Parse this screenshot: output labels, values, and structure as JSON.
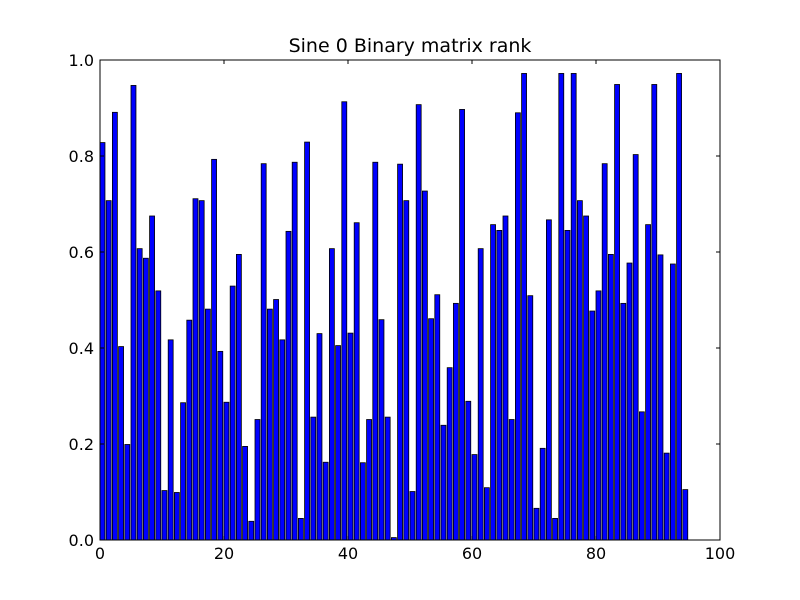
{
  "chart_data": {
    "type": "bar",
    "title": "Sine 0 Binary matrix rank",
    "xlabel": "",
    "ylabel": "",
    "xlim": [
      0,
      100
    ],
    "ylim": [
      0.0,
      1.0
    ],
    "xticks": [
      "0",
      "20",
      "40",
      "60",
      "80",
      "100"
    ],
    "yticks": [
      "0.0",
      "0.2",
      "0.4",
      "0.6",
      "0.8",
      "1.0"
    ],
    "grid": false,
    "bar_color": "#0000ff",
    "x": [
      0,
      1,
      2,
      3,
      4,
      5,
      6,
      7,
      8,
      9,
      10,
      11,
      12,
      13,
      14,
      15,
      16,
      17,
      18,
      19,
      20,
      21,
      22,
      23,
      24,
      25,
      26,
      27,
      28,
      29,
      30,
      31,
      32,
      33,
      34,
      35,
      36,
      37,
      38,
      39,
      40,
      41,
      42,
      43,
      44,
      45,
      46,
      47,
      48,
      49,
      50,
      51,
      52,
      53,
      54,
      55,
      56,
      57,
      58,
      59,
      60,
      61,
      62,
      63,
      64,
      65,
      66,
      67,
      68,
      69,
      70,
      71,
      72,
      73,
      74,
      75,
      76,
      77,
      78,
      79,
      80,
      81,
      82,
      83,
      84,
      85,
      86,
      87,
      88,
      89,
      90,
      91,
      92,
      93,
      94
    ],
    "values": [
      0.828,
      0.707,
      0.891,
      0.403,
      0.199,
      0.947,
      0.607,
      0.587,
      0.675,
      0.519,
      0.103,
      0.417,
      0.099,
      0.286,
      0.458,
      0.711,
      0.707,
      0.481,
      0.793,
      0.393,
      0.287,
      0.529,
      0.595,
      0.195,
      0.039,
      0.251,
      0.784,
      0.481,
      0.501,
      0.417,
      0.643,
      0.787,
      0.045,
      0.829,
      0.256,
      0.43,
      0.162,
      0.607,
      0.405,
      0.913,
      0.431,
      0.661,
      0.161,
      0.251,
      0.787,
      0.459,
      0.256,
      0.005,
      0.783,
      0.707,
      0.101,
      0.907,
      0.727,
      0.461,
      0.511,
      0.239,
      0.359,
      0.493,
      0.897,
      0.289,
      0.178,
      0.607,
      0.109,
      0.657,
      0.645,
      0.675,
      0.251,
      0.89,
      0.972,
      0.509,
      0.066,
      0.191,
      0.667,
      0.045,
      0.972,
      0.645,
      0.972,
      0.707,
      0.675,
      0.477,
      0.519,
      0.784,
      0.595,
      0.949,
      0.493,
      0.577,
      0.803,
      0.267,
      0.657,
      0.949,
      0.594,
      0.181,
      0.575,
      0.972,
      0.105
    ]
  }
}
